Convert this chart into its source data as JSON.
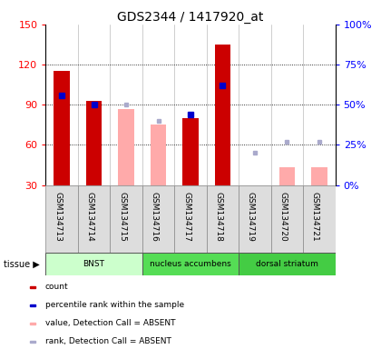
{
  "title": "GDS2344 / 1417920_at",
  "samples": [
    "GSM134713",
    "GSM134714",
    "GSM134715",
    "GSM134716",
    "GSM134717",
    "GSM134718",
    "GSM134719",
    "GSM134720",
    "GSM134721"
  ],
  "count_values": [
    115,
    93,
    null,
    null,
    80,
    135,
    null,
    null,
    null
  ],
  "count_color": "#cc0000",
  "pct_rank_values": [
    56,
    50,
    null,
    null,
    44,
    62,
    null,
    null,
    null
  ],
  "pct_rank_color": "#0000cc",
  "absent_value_values": [
    null,
    null,
    87,
    75,
    null,
    null,
    30,
    43,
    43
  ],
  "absent_value_color": "#ffaaaa",
  "absent_rank_values": [
    null,
    null,
    50,
    40,
    null,
    null,
    20,
    27,
    27
  ],
  "absent_rank_color": "#aaaacc",
  "ylim_left": [
    30,
    150
  ],
  "ylim_right": [
    0,
    100
  ],
  "yticks_left": [
    30,
    60,
    90,
    120,
    150
  ],
  "ytick_labels_left": [
    "30",
    "60",
    "90",
    "120",
    "150"
  ],
  "yticks_right": [
    0,
    25,
    50,
    75,
    100
  ],
  "ytick_labels_right": [
    "0%",
    "25%",
    "50%",
    "75%",
    "100%"
  ],
  "grid_dotted_values": [
    60,
    90,
    120
  ],
  "tissue_groups": [
    {
      "label": "BNST",
      "start": 0,
      "end": 3,
      "color": "#ccffcc"
    },
    {
      "label": "nucleus accumbens",
      "start": 3,
      "end": 6,
      "color": "#55dd55"
    },
    {
      "label": "dorsal striatum",
      "start": 6,
      "end": 9,
      "color": "#44cc44"
    }
  ],
  "tissue_label": "tissue",
  "legend_items": [
    {
      "color": "#cc0000",
      "label": "count",
      "marker": "square"
    },
    {
      "color": "#0000cc",
      "label": "percentile rank within the sample",
      "marker": "square"
    },
    {
      "color": "#ffaaaa",
      "label": "value, Detection Call = ABSENT",
      "marker": "square"
    },
    {
      "color": "#aaaacc",
      "label": "rank, Detection Call = ABSENT",
      "marker": "square"
    }
  ],
  "bg_color": "#ffffff",
  "plot_bg_color": "#ffffff",
  "sample_box_color": "#dddddd",
  "bar_width": 0.5,
  "title_fontsize": 10,
  "tick_fontsize": 8,
  "label_fontsize": 8
}
